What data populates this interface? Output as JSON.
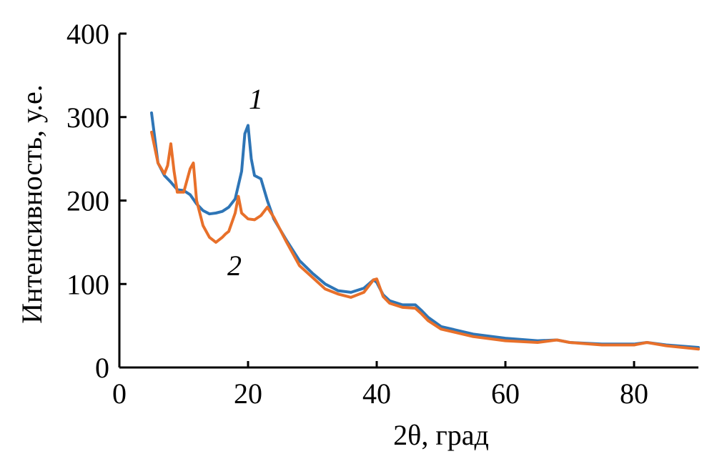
{
  "chart_data": {
    "type": "line",
    "title": "",
    "xlabel": "2θ, град",
    "ylabel": "Интенсивность, у.е.",
    "xlim": [
      0,
      90
    ],
    "ylim": [
      0,
      400
    ],
    "xticks": [
      0,
      20,
      40,
      60,
      80
    ],
    "yticks": [
      0,
      100,
      200,
      300,
      400
    ],
    "grid": false,
    "legend": "none",
    "series": [
      {
        "label": "1",
        "color": "#2e75b6",
        "x": [
          5,
          6,
          7,
          8,
          9,
          10,
          11,
          12,
          13,
          14,
          15,
          16,
          17,
          18,
          19,
          19.5,
          20,
          20.5,
          21,
          22,
          23,
          24,
          26,
          28,
          30,
          32,
          34,
          36,
          38,
          39.5,
          40,
          41,
          42,
          44,
          46,
          47,
          48,
          50,
          55,
          60,
          65,
          68,
          70,
          75,
          80,
          82,
          85,
          90
        ],
        "y": [
          305,
          245,
          230,
          222,
          213,
          212,
          207,
          196,
          188,
          184,
          185,
          187,
          192,
          202,
          235,
          280,
          290,
          250,
          230,
          226,
          200,
          178,
          152,
          128,
          113,
          100,
          92,
          90,
          95,
          105,
          102,
          87,
          80,
          75,
          75,
          68,
          60,
          49,
          40,
          35,
          32,
          33,
          30,
          28,
          28,
          30,
          27,
          24
        ]
      },
      {
        "label": "2",
        "color": "#e8702a",
        "x": [
          5,
          6,
          7,
          7.5,
          8,
          8.5,
          9,
          10,
          11,
          11.5,
          12,
          13,
          14,
          15,
          16,
          16.5,
          17,
          18,
          18.5,
          19,
          20,
          21,
          22,
          23,
          24,
          26,
          28,
          30,
          32,
          34,
          36,
          38,
          39.5,
          40,
          41,
          42,
          44,
          46,
          47,
          48,
          50,
          55,
          60,
          65,
          68,
          70,
          75,
          80,
          82,
          85,
          90
        ],
        "y": [
          282,
          245,
          232,
          242,
          268,
          235,
          210,
          210,
          238,
          245,
          200,
          170,
          156,
          150,
          156,
          160,
          163,
          185,
          205,
          185,
          178,
          177,
          182,
          192,
          180,
          150,
          122,
          108,
          94,
          88,
          84,
          90,
          105,
          106,
          85,
          77,
          72,
          71,
          64,
          56,
          46,
          37,
          32,
          30,
          33,
          30,
          27,
          27,
          30,
          26,
          22
        ]
      }
    ]
  }
}
